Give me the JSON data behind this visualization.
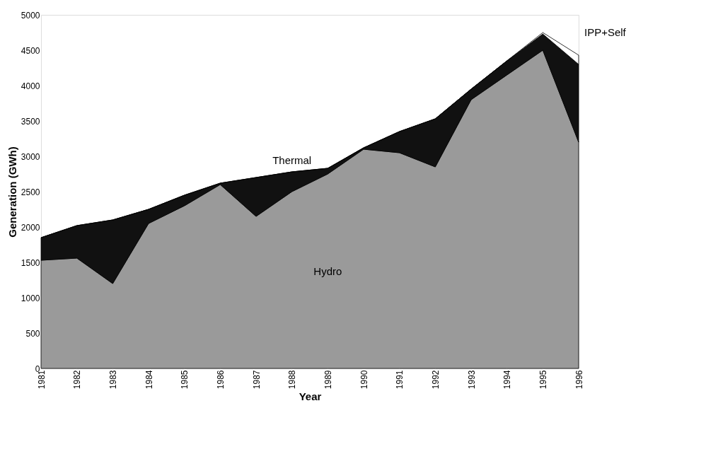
{
  "chart_data": {
    "type": "area",
    "stacked": true,
    "xlabel": "Year",
    "ylabel": "Generation (GWh)",
    "categories": [
      "1981",
      "1982",
      "1983",
      "1984",
      "1985",
      "1986",
      "1987",
      "1988",
      "1989",
      "1990",
      "1991",
      "1992",
      "1993",
      "1994",
      "1995",
      "1996"
    ],
    "series": [
      {
        "name": "Hydro",
        "color": "#9a9a9a",
        "values": [
          1530,
          1560,
          1200,
          2050,
          2300,
          2600,
          2150,
          2500,
          2750,
          3100,
          3050,
          2850,
          3800,
          4150,
          4500,
          3200
        ]
      },
      {
        "name": "Thermal",
        "color": "#111111",
        "values": [
          320,
          460,
          900,
          200,
          150,
          20,
          550,
          280,
          80,
          20,
          300,
          680,
          150,
          200,
          230,
          1100
        ]
      },
      {
        "name": "IPP+Self",
        "color": "#ffffff",
        "values": [
          0,
          0,
          0,
          0,
          0,
          0,
          0,
          0,
          0,
          0,
          0,
          0,
          0,
          0,
          20,
          130
        ]
      }
    ],
    "ylim": [
      0,
      5000
    ],
    "yticks": [
      0,
      500,
      1000,
      1500,
      2000,
      2500,
      3000,
      3500,
      4000,
      4500,
      5000
    ],
    "grid": false
  }
}
